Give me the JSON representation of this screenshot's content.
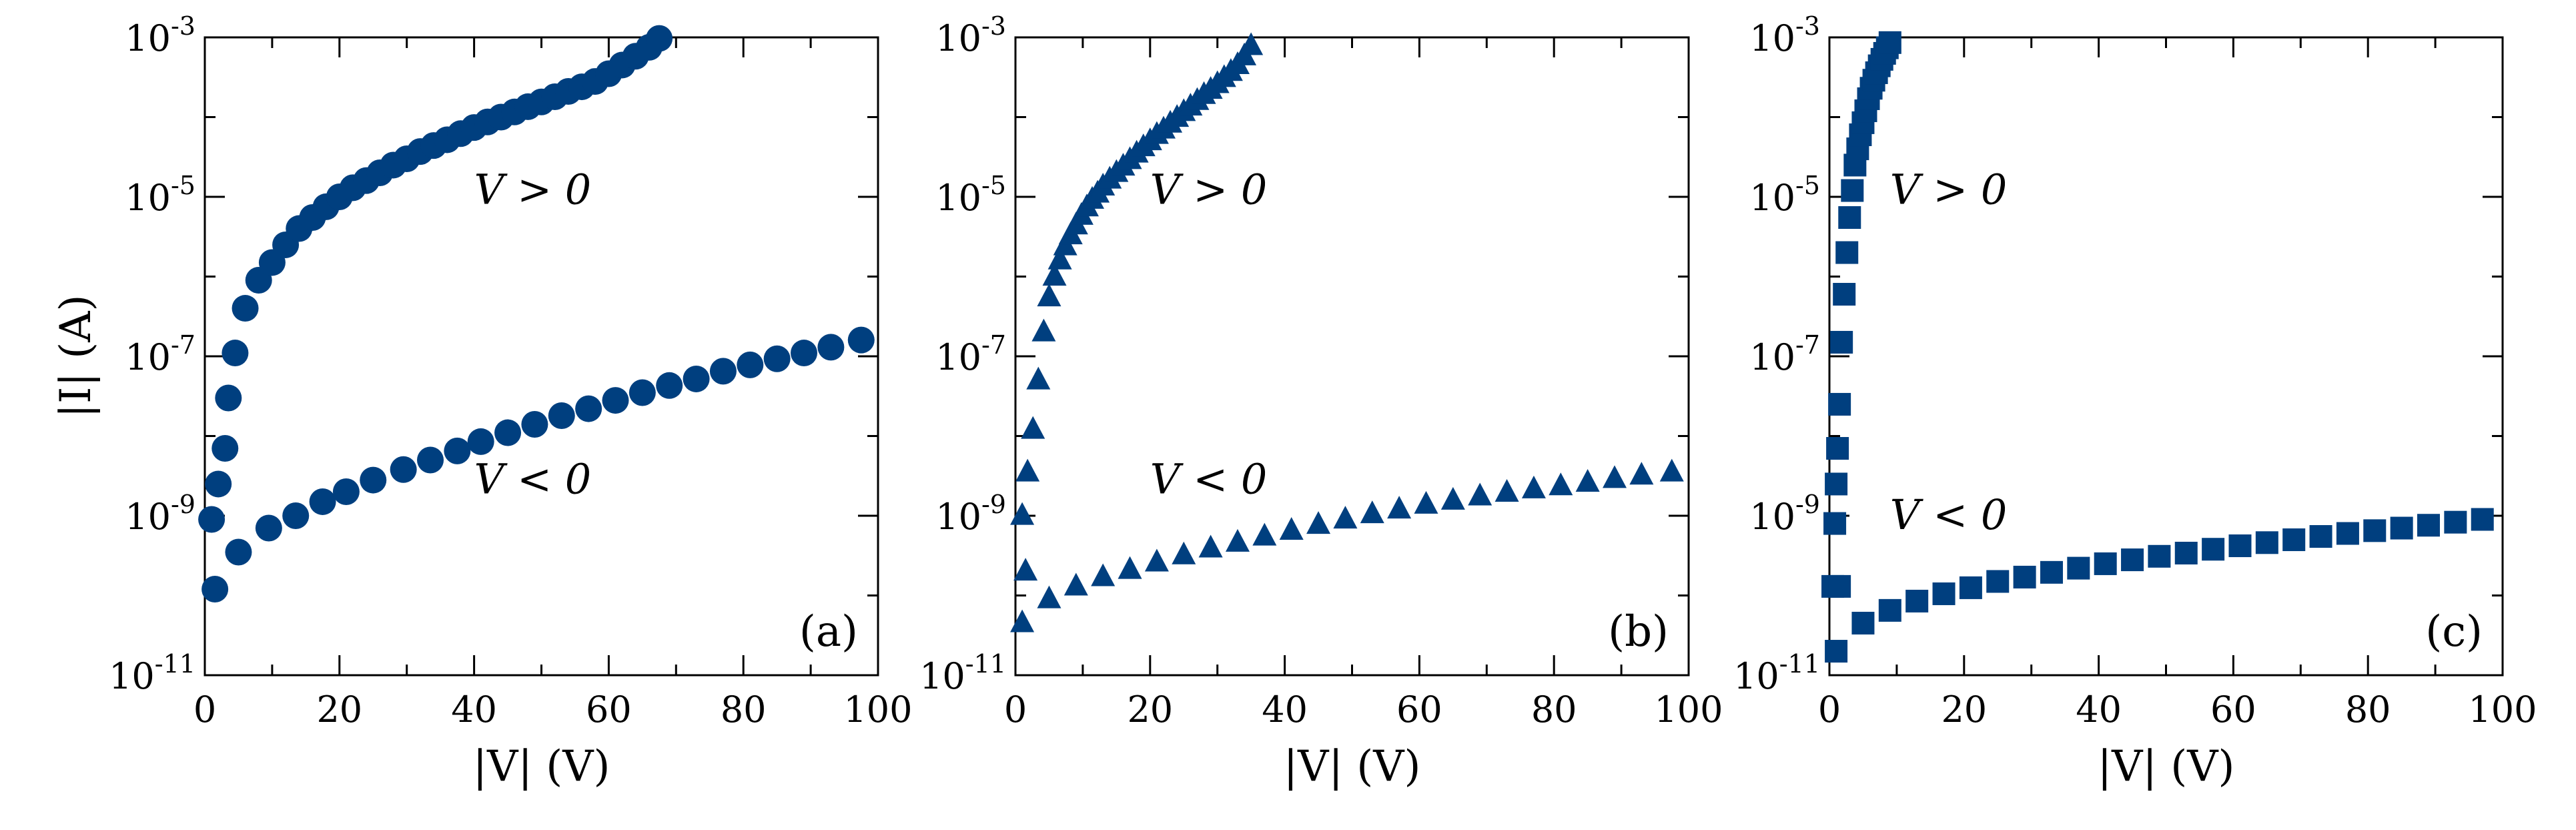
{
  "figure": {
    "marker_color": "#003f7f",
    "axis_color": "#000000",
    "ylabel_main": "|I| (A)"
  },
  "chart_data": [
    {
      "type": "scatter",
      "panel_label": "(a)",
      "marker": "circle",
      "xlabel": "|V| (V)",
      "ylabel": "|I| (A)",
      "xlim": [
        0,
        100
      ],
      "ylim": [
        1e-11,
        0.001
      ],
      "yscale": "log",
      "x_ticks": [
        "0",
        "20",
        "40",
        "60",
        "80",
        "100"
      ],
      "y_ticks": [
        {
          "base": "10",
          "exp": "-3"
        },
        {
          "base": "10",
          "exp": "-5"
        },
        {
          "base": "10",
          "exp": "-7"
        },
        {
          "base": "10",
          "exp": "-9"
        },
        {
          "base": "10",
          "exp": "-11"
        }
      ],
      "annotations": [
        {
          "text": "V > 0",
          "x": 40,
          "y": 1.2e-05
        },
        {
          "text": "V < 0",
          "x": 40,
          "y": 2.8e-09
        }
      ],
      "series": [
        {
          "label": "V > 0",
          "x": [
            1.0,
            2.0,
            3.0,
            3.5,
            4.5,
            6.0,
            8.0,
            10.0,
            12.0,
            14.0,
            16.0,
            18.0,
            20.0,
            22.0,
            24.0,
            26.0,
            28.0,
            30.0,
            32.0,
            34.0,
            36.0,
            38.0,
            40.0,
            42.0,
            44.0,
            46.0,
            48.0,
            50.0,
            52.0,
            54.0,
            56.0,
            58.0,
            60.0,
            62.0,
            64.0,
            66.0,
            67.5
          ],
          "y": [
            9e-10,
            2.5e-09,
            7e-09,
            3e-08,
            1.1e-07,
            4e-07,
            9e-07,
            1.5e-06,
            2.5e-06,
            4e-06,
            5.5e-06,
            7.5e-06,
            1e-05,
            1.3e-05,
            1.6e-05,
            2e-05,
            2.5e-05,
            3e-05,
            3.7e-05,
            4.4e-05,
            5.2e-05,
            6.2e-05,
            7.4e-05,
            8.7e-05,
            0.0001,
            0.000116,
            0.000135,
            0.000155,
            0.00018,
            0.00021,
            0.00024,
            0.00028,
            0.00035,
            0.00045,
            0.00058,
            0.00075,
            0.00097
          ]
        },
        {
          "label": "V < 0",
          "x": [
            1.5,
            5.0,
            9.5,
            13.5,
            17.5,
            21.0,
            25.0,
            29.5,
            33.5,
            37.5,
            41.0,
            45.0,
            49.0,
            53.0,
            57.0,
            61.0,
            65.0,
            69.0,
            73.0,
            77.0,
            81.0,
            85.0,
            89.0,
            93.0,
            97.5
          ],
          "y": [
            1.2e-10,
            3.5e-10,
            7e-10,
            1e-09,
            1.5e-09,
            2e-09,
            2.8e-09,
            3.8e-09,
            5e-09,
            6.5e-09,
            8.5e-09,
            1.1e-08,
            1.4e-08,
            1.8e-08,
            2.2e-08,
            2.8e-08,
            3.5e-08,
            4.3e-08,
            5.2e-08,
            6.5e-08,
            7.8e-08,
            9.3e-08,
            1.1e-07,
            1.3e-07,
            1.6e-07
          ]
        }
      ]
    },
    {
      "type": "scatter",
      "panel_label": "(b)",
      "marker": "triangle",
      "xlabel": "|V| (V)",
      "ylabel": "",
      "xlim": [
        0,
        100
      ],
      "ylim": [
        1e-11,
        0.001
      ],
      "yscale": "log",
      "x_ticks": [
        "0",
        "20",
        "40",
        "60",
        "80",
        "100"
      ],
      "y_ticks": [
        {
          "base": "10",
          "exp": "-3"
        },
        {
          "base": "10",
          "exp": "-5"
        },
        {
          "base": "10",
          "exp": "-7"
        },
        {
          "base": "10",
          "exp": "-9"
        },
        {
          "base": "10",
          "exp": "-11"
        }
      ],
      "annotations": [
        {
          "text": "V > 0",
          "x": 20,
          "y": 1.2e-05
        },
        {
          "text": "V < 0",
          "x": 20,
          "y": 2.8e-09
        }
      ],
      "series": [
        {
          "label": "V > 0",
          "x": [
            1.0,
            1.8,
            2.6,
            3.4,
            4.2,
            5.0,
            5.8,
            6.6,
            7.4,
            8.2,
            9.0,
            9.8,
            10.6,
            11.4,
            12.2,
            13.0,
            14.0,
            15.0,
            16.0,
            17.0,
            18.0,
            19.0,
            20.0,
            21.0,
            22.0,
            23.0,
            24.0,
            25.0,
            26.0,
            27.0,
            28.0,
            29.0,
            30.0,
            31.0,
            32.0,
            33.0,
            34.0,
            35.0
          ],
          "y": [
            1e-09,
            3.5e-09,
            1.2e-08,
            5e-08,
            2e-07,
            5.5e-07,
            1e-06,
            1.6e-06,
            2.4e-06,
            3.3e-06,
            4.4e-06,
            5.8e-06,
            7.4e-06,
            9.2e-06,
            1.1e-05,
            1.35e-05,
            1.65e-05,
            2e-05,
            2.4e-05,
            2.9e-05,
            3.5e-05,
            4.2e-05,
            5e-05,
            6e-05,
            7e-05,
            8.3e-05,
            9.8e-05,
            0.000116,
            0.000136,
            0.00016,
            0.00019,
            0.00022,
            0.00026,
            0.00031,
            0.00037,
            0.00045,
            0.00058,
            0.00078
          ]
        },
        {
          "label": "V < 0",
          "x": [
            1.0,
            1.5,
            5.0,
            9.0,
            13.0,
            17.0,
            21.0,
            25.0,
            29.0,
            33.0,
            37.0,
            41.0,
            45.0,
            49.0,
            53.0,
            57.0,
            61.0,
            65.0,
            69.0,
            73.0,
            77.0,
            81.0,
            85.0,
            89.0,
            93.0,
            97.5
          ],
          "y": [
            4.5e-11,
            2e-10,
            9e-11,
            1.3e-10,
            1.7e-10,
            2.1e-10,
            2.6e-10,
            3.2e-10,
            3.9e-10,
            4.6e-10,
            5.5e-10,
            6.5e-10,
            7.7e-10,
            9e-10,
            1.05e-09,
            1.2e-09,
            1.38e-09,
            1.55e-09,
            1.75e-09,
            1.95e-09,
            2.15e-09,
            2.35e-09,
            2.6e-09,
            2.9e-09,
            3.2e-09,
            3.5e-09
          ]
        }
      ]
    },
    {
      "type": "scatter",
      "panel_label": "(c)",
      "marker": "square",
      "xlabel": "|V| (V)",
      "ylabel": "",
      "xlim": [
        0,
        100
      ],
      "ylim": [
        1e-11,
        0.001
      ],
      "yscale": "log",
      "x_ticks": [
        "0",
        "20",
        "40",
        "60",
        "80",
        "100"
      ],
      "y_ticks": [
        {
          "base": "10",
          "exp": "-3"
        },
        {
          "base": "10",
          "exp": "-5"
        },
        {
          "base": "10",
          "exp": "-7"
        },
        {
          "base": "10",
          "exp": "-9"
        },
        {
          "base": "10",
          "exp": "-11"
        }
      ],
      "annotations": [
        {
          "text": "V > 0",
          "x": 9,
          "y": 1.2e-05
        },
        {
          "text": "V < 0",
          "x": 9,
          "y": 1e-09
        }
      ],
      "series": [
        {
          "label": "V > 0",
          "x": [
            0.8,
            1.0,
            1.2,
            1.5,
            1.8,
            2.2,
            2.6,
            3.0,
            3.4,
            3.8,
            4.2,
            4.6,
            5.0,
            5.4,
            5.8,
            6.2,
            6.6,
            7.0,
            7.4,
            7.8,
            8.2,
            8.6,
            9.0
          ],
          "y": [
            8e-10,
            2.5e-09,
            7e-09,
            2.5e-08,
            1.5e-07,
            6e-07,
            2e-06,
            5.5e-06,
            1.2e-05,
            2.5e-05,
            4e-05,
            6e-05,
            8.5e-05,
            0.00012,
            0.00017,
            0.00023,
            0.00029,
            0.00036,
            0.00044,
            0.00053,
            0.00063,
            0.00074,
            0.00086
          ]
        },
        {
          "label": "V < 0",
          "x": [
            0.5,
            1.0,
            1.5,
            5.0,
            9.0,
            13.0,
            17.0,
            21.0,
            25.0,
            29.0,
            33.0,
            37.0,
            41.0,
            45.0,
            49.0,
            53.0,
            57.0,
            61.0,
            65.0,
            69.0,
            73.0,
            77.0,
            81.0,
            85.0,
            89.0,
            93.0,
            97.0
          ],
          "y": [
            1.3e-10,
            2e-11,
            1.3e-10,
            4.5e-11,
            6.5e-11,
            8.5e-11,
            1.05e-10,
            1.25e-10,
            1.5e-10,
            1.7e-10,
            1.95e-10,
            2.2e-10,
            2.5e-10,
            2.8e-10,
            3.1e-10,
            3.4e-10,
            3.8e-10,
            4.2e-10,
            4.6e-10,
            5e-10,
            5.5e-10,
            6e-10,
            6.5e-10,
            7e-10,
            7.6e-10,
            8.3e-10,
            9e-10
          ]
        }
      ]
    }
  ]
}
